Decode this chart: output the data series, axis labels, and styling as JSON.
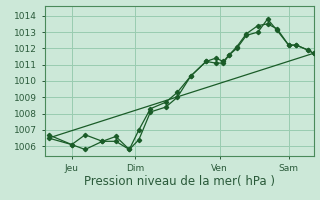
{
  "background_color": "#cce8d8",
  "grid_color": "#99ccb0",
  "line_color": "#1a5c28",
  "spine_color": "#4a8a5a",
  "tick_label_color": "#2a5a3a",
  "xlabel": "Pression niveau de la mer( hPa )",
  "ylabel_ticks": [
    1006,
    1007,
    1008,
    1009,
    1010,
    1011,
    1012,
    1013,
    1014
  ],
  "ylim": [
    1005.4,
    1014.6
  ],
  "xlim": [
    0.0,
    7.0
  ],
  "xtick_positions": [
    0.7,
    2.35,
    4.55,
    6.35
  ],
  "xtick_labels": [
    "Jeu",
    "Dim",
    "Ven",
    "Sam"
  ],
  "line1_x": [
    0.1,
    0.7,
    1.05,
    1.5,
    1.85,
    2.2,
    2.45,
    2.75,
    3.15,
    3.45,
    3.8,
    4.2,
    4.45,
    4.65,
    4.8,
    5.0,
    5.25,
    5.55,
    5.8,
    6.05,
    6.35,
    6.55,
    6.85,
    7.0
  ],
  "line1_y": [
    1006.5,
    1006.1,
    1005.8,
    1006.3,
    1006.6,
    1005.8,
    1007.0,
    1008.3,
    1008.7,
    1009.3,
    1010.3,
    1011.2,
    1011.4,
    1011.2,
    1011.6,
    1012.0,
    1012.8,
    1013.0,
    1013.8,
    1013.1,
    1012.2,
    1012.2,
    1011.9,
    1011.7
  ],
  "line2_x": [
    0.1,
    0.7,
    1.05,
    1.5,
    1.85,
    2.2,
    2.45,
    2.75,
    3.15,
    3.45,
    3.8,
    4.2,
    4.45,
    4.65,
    4.8,
    5.0,
    5.25,
    5.55,
    5.8,
    6.05,
    6.35,
    6.55,
    6.85,
    7.0
  ],
  "line2_y": [
    1006.7,
    1006.1,
    1006.7,
    1006.3,
    1006.3,
    1005.8,
    1006.4,
    1008.1,
    1008.4,
    1009.0,
    1010.3,
    1011.2,
    1011.1,
    1011.1,
    1011.6,
    1012.1,
    1012.9,
    1013.4,
    1013.5,
    1013.2,
    1012.2,
    1012.2,
    1011.9,
    1011.7
  ],
  "line3_x": [
    0.1,
    7.0
  ],
  "line3_y": [
    1006.5,
    1011.7
  ],
  "label_fontsize": 6.5,
  "xlabel_fontsize": 8.5
}
